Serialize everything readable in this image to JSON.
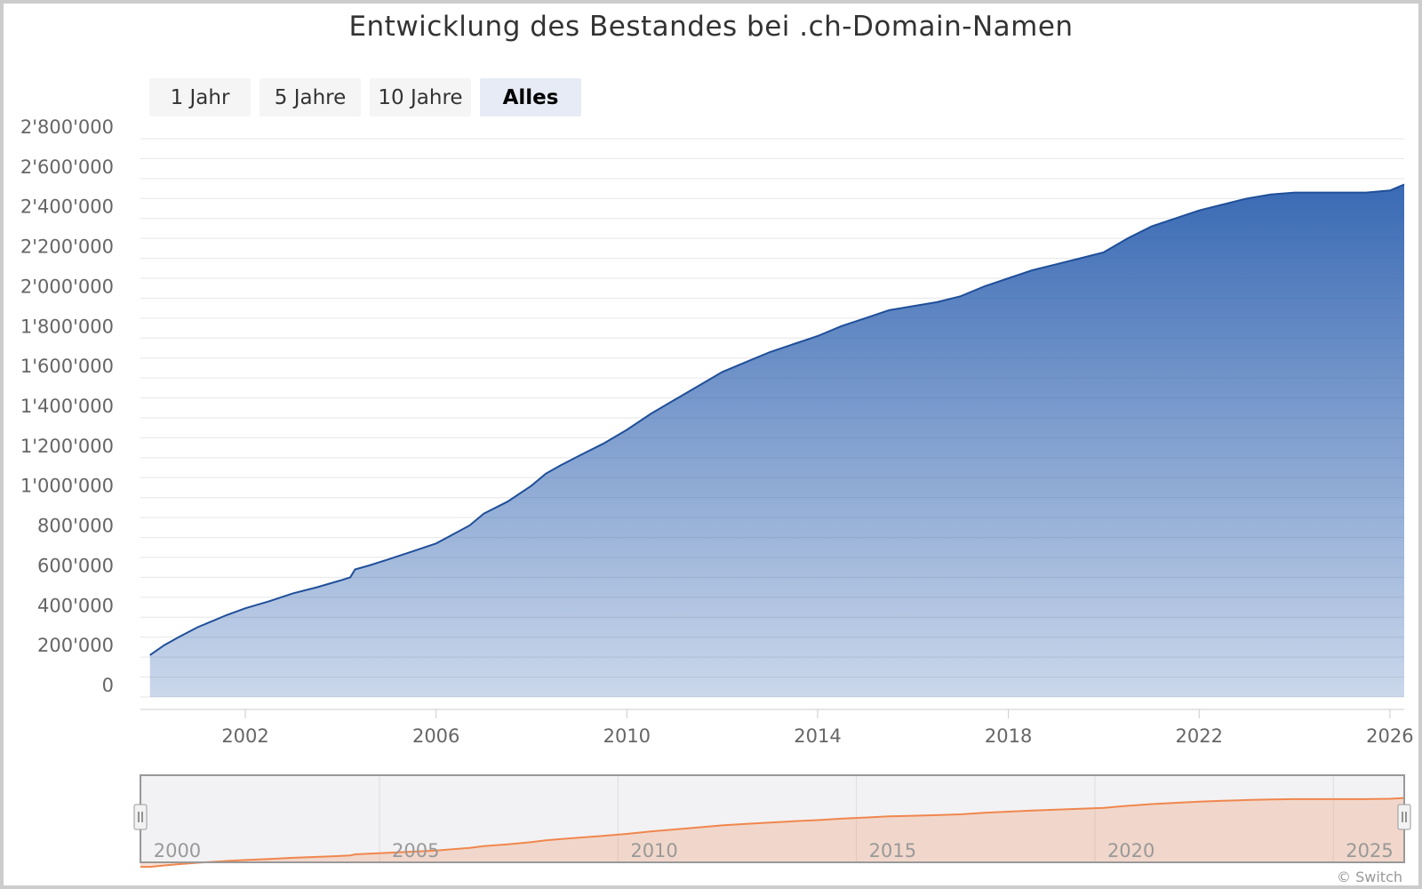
{
  "chart_data": {
    "type": "area",
    "title": "Entwicklung des Bestandes bei .ch-Domain-Namen",
    "ylim": [
      0,
      2800000
    ],
    "y_ticks": [
      "0",
      "200'000",
      "400'000",
      "600'000",
      "800'000",
      "1'000'000",
      "1'200'000",
      "1'400'000",
      "1'600'000",
      "1'800'000",
      "2'000'000",
      "2'200'000",
      "2'400'000",
      "2'600'000",
      "2'800'000"
    ],
    "x_ticks": [
      "2002",
      "2006",
      "2010",
      "2014",
      "2018",
      "2022",
      "2026"
    ],
    "xlim": [
      1999.8,
      2026.3
    ],
    "grid": true,
    "legend": "none",
    "series_color": "#2f62b0",
    "x": [
      2000.0,
      2000.3,
      2000.6,
      2001.0,
      2001.3,
      2001.6,
      2002.0,
      2002.5,
      2003.0,
      2003.5,
      2004.0,
      2004.2,
      2004.3,
      2004.6,
      2005.0,
      2005.5,
      2006.0,
      2006.7,
      2007.0,
      2007.5,
      2008.0,
      2008.3,
      2008.6,
      2009.0,
      2009.5,
      2010.0,
      2010.5,
      2011.0,
      2011.5,
      2012.0,
      2012.5,
      2013.0,
      2013.5,
      2014.0,
      2014.5,
      2015.0,
      2015.5,
      2016.0,
      2016.5,
      2017.0,
      2017.5,
      2018.0,
      2018.5,
      2019.0,
      2019.5,
      2020.0,
      2020.5,
      2021.0,
      2021.5,
      2022.0,
      2022.5,
      2023.0,
      2023.5,
      2024.0,
      2024.5,
      2025.0,
      2025.5,
      2026.0,
      2026.3
    ],
    "values": [
      210000,
      260000,
      300000,
      350000,
      380000,
      410000,
      445000,
      480000,
      520000,
      550000,
      585000,
      600000,
      640000,
      660000,
      690000,
      730000,
      770000,
      860000,
      920000,
      980000,
      1060000,
      1120000,
      1160000,
      1210000,
      1270000,
      1340000,
      1420000,
      1490000,
      1560000,
      1630000,
      1680000,
      1730000,
      1770000,
      1810000,
      1860000,
      1900000,
      1940000,
      1960000,
      1980000,
      2010000,
      2060000,
      2100000,
      2140000,
      2170000,
      2200000,
      2230000,
      2300000,
      2360000,
      2400000,
      2440000,
      2470000,
      2500000,
      2520000,
      2530000,
      2530000,
      2530000,
      2530000,
      2540000,
      2570000
    ],
    "navigator": {
      "xlim": [
        1999.8,
        2026.3
      ],
      "x_ticks": [
        "2000",
        "2005",
        "2010",
        "2015",
        "2020",
        "2025"
      ],
      "series_color": "#f0874e"
    }
  },
  "range_buttons": [
    "1 Jahr",
    "5 Jahre",
    "10 Jahre",
    "Alles"
  ],
  "active_range": "Alles",
  "credit": "© Switch"
}
